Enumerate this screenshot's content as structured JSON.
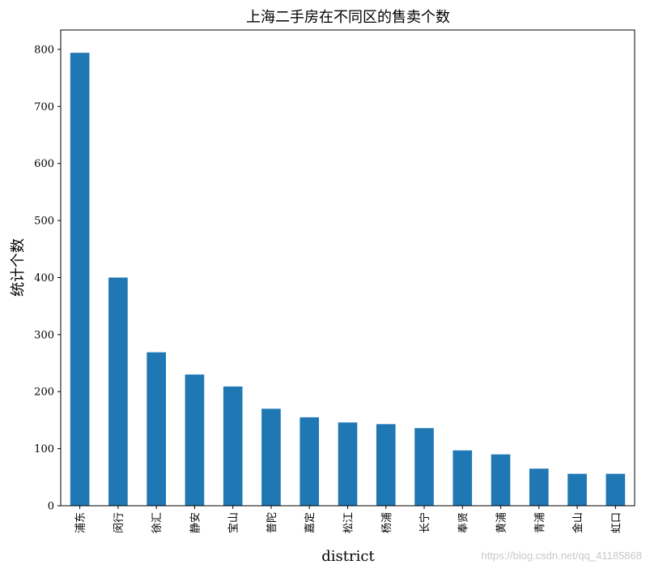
{
  "chart_data": {
    "type": "bar",
    "title": "上海二手房在不同区的售卖个数",
    "xlabel": "district",
    "ylabel": "统计个数",
    "categories": [
      "浦东",
      "闵行",
      "徐汇",
      "静安",
      "宝山",
      "普陀",
      "嘉定",
      "松江",
      "杨浦",
      "长宁",
      "奉贤",
      "黄浦",
      "青浦",
      "金山",
      "虹口"
    ],
    "values": [
      794,
      400,
      269,
      230,
      209,
      170,
      155,
      146,
      143,
      136,
      97,
      90,
      65,
      56,
      56
    ],
    "ylim": [
      0,
      834
    ],
    "yticks": [
      "0",
      "100",
      "200",
      "300",
      "400",
      "500",
      "600",
      "700",
      "800"
    ],
    "bar_color": "#1f77b4",
    "grid": false,
    "legend": "none"
  },
  "watermark": "https://blog.csdn.net/qq_41185868"
}
